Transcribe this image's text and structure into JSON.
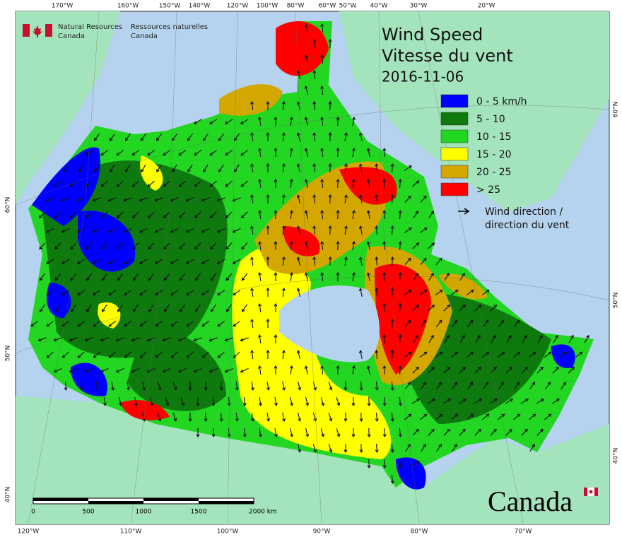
{
  "header": {
    "agency_en": "Natural Resources",
    "agency_en_2": "Canada",
    "agency_fr": "Ressources naturelles",
    "agency_fr_2": "Canada"
  },
  "title": {
    "line1": "Wind Speed",
    "line2": "Vitesse du vent",
    "date": "2016-11-06"
  },
  "legend": {
    "items": [
      {
        "label": "0 - 5 km/h",
        "color": "#0000ff"
      },
      {
        "label": "5 - 10",
        "color": "#0e7a0e"
      },
      {
        "label": "10 - 15",
        "color": "#22d622"
      },
      {
        "label": "15 - 20",
        "color": "#ffff00"
      },
      {
        "label": "20 - 25",
        "color": "#d4a700"
      },
      {
        "label": "> 25",
        "color": "#ff0000"
      }
    ],
    "arrow_label": [
      "Wind direction /",
      "direction du vent"
    ]
  },
  "graticule": {
    "top": [
      "170°W",
      "160°W",
      "150°W",
      "140°W",
      "120°W",
      "100°W",
      "80°W",
      "60°W",
      "50°W",
      "40°W",
      "30°W",
      "20°W"
    ],
    "bottom": [
      "120°W",
      "110°W",
      "100°W",
      "90°W",
      "80°W",
      "70°W"
    ],
    "left": [
      "60°N",
      "50°N",
      "40°N"
    ],
    "right": [
      "60°N",
      "50°N",
      "40°N"
    ]
  },
  "scale_bar": {
    "labels": [
      "0",
      "500",
      "1000",
      "1500",
      "2000 km"
    ]
  },
  "wordmark": "Canada"
}
